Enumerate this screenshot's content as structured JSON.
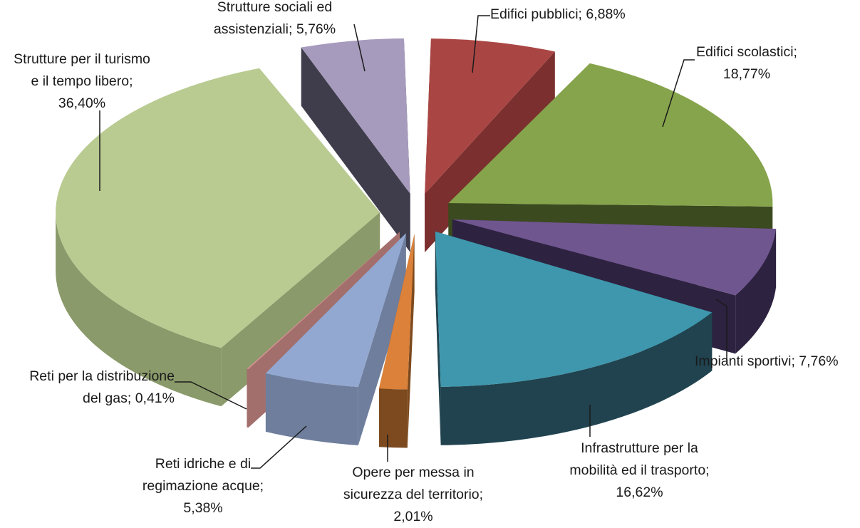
{
  "chart_data": {
    "type": "pie",
    "style": "3d-exploded",
    "series": [
      {
        "categories": [
          "Edifici pubblici",
          "Edifici scolastici",
          "Impianti sportivi",
          "Infrastrutture per la mobilità ed il trasporto",
          "Opere per messa in sicurezza del territorio",
          "Reti idriche e di regimazione acque",
          "Reti per la distribuzione del gas",
          "Strutture per il turismo e il tempo libero",
          "Strutture sociali ed assistenziali"
        ],
        "values": [
          6.88,
          18.77,
          7.76,
          16.62,
          2.01,
          5.38,
          0.41,
          36.4,
          5.76
        ],
        "unit": "%"
      }
    ],
    "colors": {
      "top": [
        "#a94644",
        "#86a44b",
        "#70568f",
        "#3e97ad",
        "#db8139",
        "#93a8d1",
        "#d19491",
        "#b9cb91",
        "#a79bbd"
      ],
      "side": [
        "#7b2f2e",
        "#3b4a1f",
        "#2d2240",
        "#20434f",
        "#7d4a1f",
        "#6e7e9c",
        "#a36f6c",
        "#8a9a6a",
        "#3f3d4c"
      ]
    },
    "data_labels": [
      {
        "lines": [
          "Edifici pubblici; 6,88%"
        ]
      },
      {
        "lines": [
          "Edifici scolastici;",
          "18,77%"
        ]
      },
      {
        "lines": [
          "Impianti sportivi; 7,76%"
        ]
      },
      {
        "lines": [
          "Infrastrutture per la",
          "mobilità ed il trasporto;",
          "16,62%"
        ]
      },
      {
        "lines": [
          "Opere per messa in",
          "sicurezza del territorio;",
          "2,01%"
        ]
      },
      {
        "lines": [
          "Reti idriche e di",
          "regimazione acque;",
          "5,38%"
        ]
      },
      {
        "lines": [
          "Reti per la distribuzione",
          "del gas; 0,41%"
        ]
      },
      {
        "lines": [
          "Strutture per il turismo",
          "e il tempo libero;",
          "36,40%"
        ]
      },
      {
        "lines": [
          "Strutture sociali ed",
          "assistenziali; 5,76%"
        ]
      }
    ],
    "legend": "none"
  }
}
